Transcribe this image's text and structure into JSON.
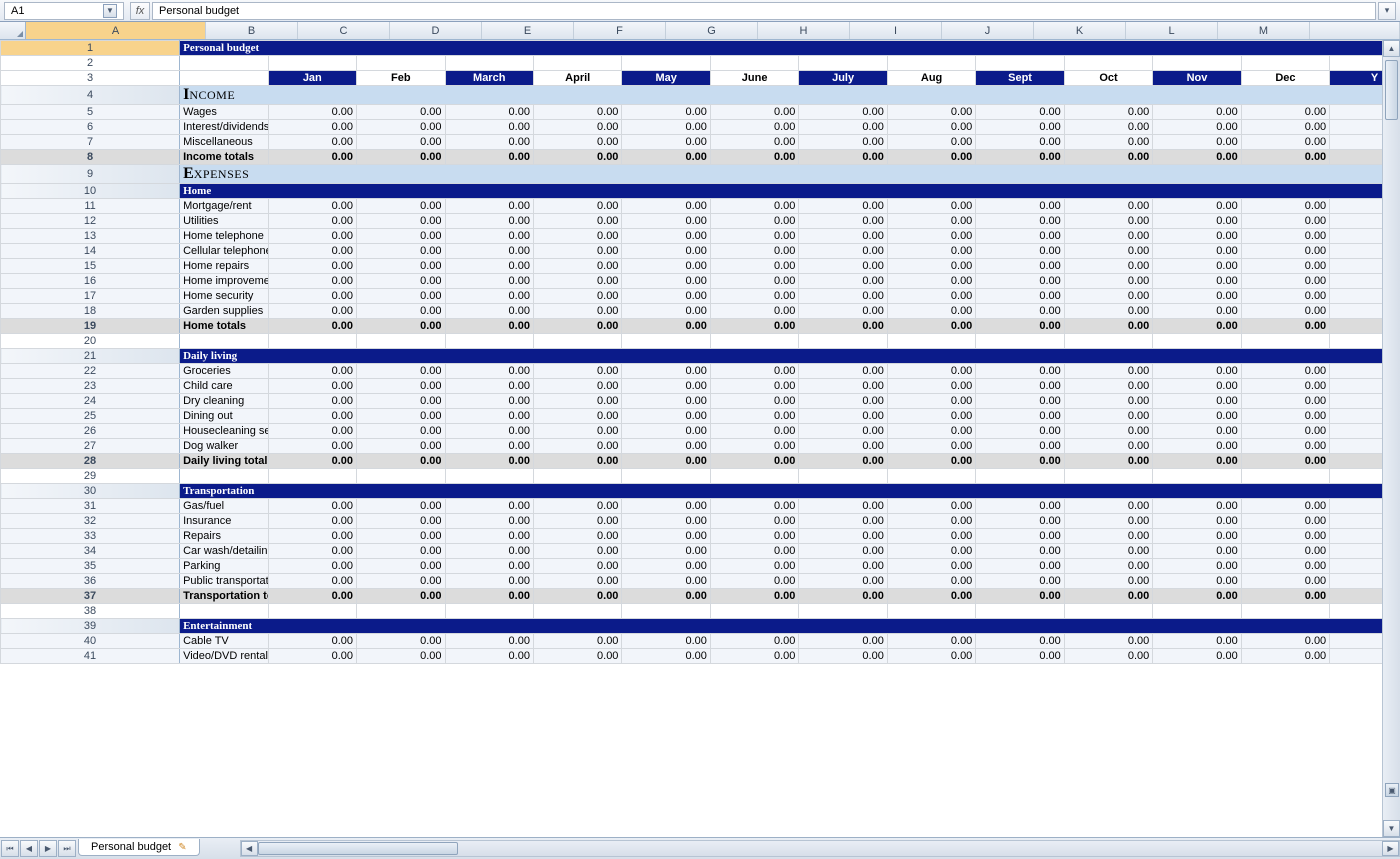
{
  "formula": {
    "cell_ref": "A1",
    "content": "Personal budget"
  },
  "columns": [
    "A",
    "B",
    "C",
    "D",
    "E",
    "F",
    "G",
    "H",
    "I",
    "J",
    "K",
    "L",
    "M"
  ],
  "col_widths": {
    "row_header": 26,
    "A": 180,
    "month": 92,
    "last": 56
  },
  "title": "Personal budget",
  "months": [
    "Jan",
    "Feb",
    "March",
    "April",
    "May",
    "June",
    "July",
    "Aug",
    "Sept",
    "Oct",
    "Nov",
    "Dec"
  ],
  "month_dark_pattern": [
    true,
    false,
    true,
    false,
    true,
    false,
    true,
    false,
    true,
    false,
    true,
    false
  ],
  "year_stub": "Y",
  "zero": "0.00",
  "sections": [
    {
      "type": "title",
      "row": 1
    },
    {
      "type": "blank",
      "row": 2
    },
    {
      "type": "months",
      "row": 3
    },
    {
      "type": "light-header",
      "row": 4,
      "label": "Income",
      "big": "I",
      "rest": "NCOME"
    },
    {
      "type": "data",
      "row": 5,
      "label": "Wages"
    },
    {
      "type": "data",
      "row": 6,
      "label": "Interest/dividends"
    },
    {
      "type": "data",
      "row": 7,
      "label": "Miscellaneous"
    },
    {
      "type": "totals",
      "row": 8,
      "label": "Income totals"
    },
    {
      "type": "light-header",
      "row": 9,
      "label": "Expenses",
      "big": "E",
      "rest": "XPENSES"
    },
    {
      "type": "dark-header",
      "row": 10,
      "label": "Home"
    },
    {
      "type": "data",
      "row": 11,
      "label": "Mortgage/rent"
    },
    {
      "type": "data",
      "row": 12,
      "label": "Utilities"
    },
    {
      "type": "data",
      "row": 13,
      "label": "Home telephone"
    },
    {
      "type": "data",
      "row": 14,
      "label": "Cellular telephone"
    },
    {
      "type": "data",
      "row": 15,
      "label": "Home repairs"
    },
    {
      "type": "data",
      "row": 16,
      "label": "Home improvement"
    },
    {
      "type": "data",
      "row": 17,
      "label": "Home security"
    },
    {
      "type": "data",
      "row": 18,
      "label": "Garden supplies"
    },
    {
      "type": "totals",
      "row": 19,
      "label": "Home totals"
    },
    {
      "type": "blank",
      "row": 20
    },
    {
      "type": "dark-header",
      "row": 21,
      "label": "Daily living"
    },
    {
      "type": "data",
      "row": 22,
      "label": "Groceries"
    },
    {
      "type": "data",
      "row": 23,
      "label": "Child care"
    },
    {
      "type": "data",
      "row": 24,
      "label": "Dry cleaning"
    },
    {
      "type": "data",
      "row": 25,
      "label": "Dining out"
    },
    {
      "type": "data",
      "row": 26,
      "label": "Housecleaning service"
    },
    {
      "type": "data",
      "row": 27,
      "label": "Dog walker"
    },
    {
      "type": "totals",
      "row": 28,
      "label": "Daily living totals"
    },
    {
      "type": "blank",
      "row": 29
    },
    {
      "type": "dark-header",
      "row": 30,
      "label": "Transportation"
    },
    {
      "type": "data",
      "row": 31,
      "label": "Gas/fuel"
    },
    {
      "type": "data",
      "row": 32,
      "label": "Insurance"
    },
    {
      "type": "data",
      "row": 33,
      "label": "Repairs"
    },
    {
      "type": "data",
      "row": 34,
      "label": "Car wash/detailing services"
    },
    {
      "type": "data",
      "row": 35,
      "label": "Parking"
    },
    {
      "type": "data",
      "row": 36,
      "label": "Public transportation"
    },
    {
      "type": "totals",
      "row": 37,
      "label": "Transportation totals"
    },
    {
      "type": "blank",
      "row": 38
    },
    {
      "type": "dark-header",
      "row": 39,
      "label": "Entertainment"
    },
    {
      "type": "data",
      "row": 40,
      "label": "Cable TV"
    },
    {
      "type": "data",
      "row": 41,
      "label": "Video/DVD rentals"
    }
  ],
  "sheet_tab": "Personal budget",
  "colors": {
    "dark_blue": "#0b1b8a",
    "light_blue": "#c8dcf0",
    "row_bg1": "#f2f5fa",
    "row_bg2": "#ffffff",
    "totals_bg": "#dcdcdc",
    "grid": "#d4d8dd"
  }
}
